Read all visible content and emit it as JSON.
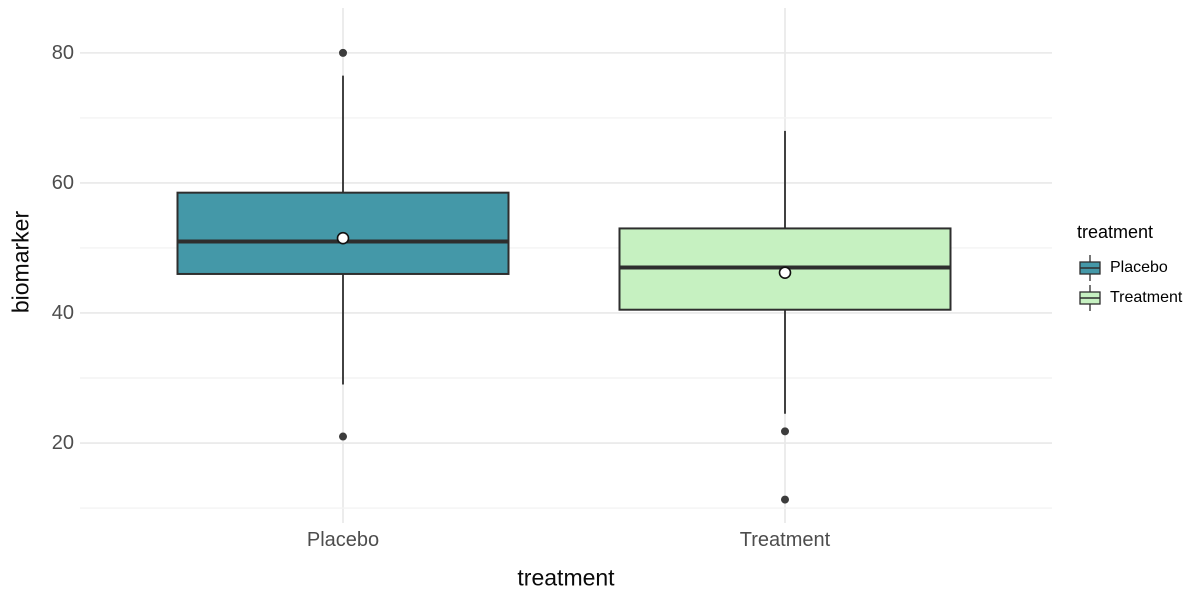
{
  "axes": {
    "y_title": "biomarker",
    "x_title": "treatment"
  },
  "legend": {
    "title": "treatment",
    "position": "right",
    "entries": [
      "Placebo",
      "Treatment"
    ]
  },
  "colors": {
    "background": "#FFFFFF",
    "teal_fill": "#4498A8",
    "green_fill": "#C6F1C1",
    "box_outline": "#2E2E2E",
    "grid_major": "#E8E8E8",
    "grid_minor": "#F3F3F3",
    "tick_label": "#4D4D4D",
    "outlier_dot": "#3C3C3C",
    "mean_fill": "#FFFFFF",
    "mean_stroke": "#111111"
  },
  "chart_data": {
    "type": "boxplot",
    "title": "",
    "xlabel": "treatment",
    "ylabel": "biomarker",
    "categories": [
      "Placebo",
      "Treatment"
    ],
    "ylim": [
      7.7,
      86.9
    ],
    "yticks_major": [
      20,
      40,
      60,
      80
    ],
    "yticks_minor": [
      10,
      30,
      50,
      70
    ],
    "grid": true,
    "legend_position": "right",
    "series": [
      {
        "name": "Placebo",
        "fill": "#4498A8",
        "q1": 46,
        "median": 51,
        "q3": 58.5,
        "whisker_low": 29,
        "whisker_high": 76.5,
        "mean": 51.5,
        "outliers": [
          80,
          21
        ]
      },
      {
        "name": "Treatment",
        "fill": "#C6F1C1",
        "q1": 40.5,
        "median": 47,
        "q3": 53,
        "whisker_low": 24.5,
        "whisker_high": 68,
        "mean": 46.2,
        "outliers": [
          21.8,
          11.3
        ]
      }
    ]
  }
}
